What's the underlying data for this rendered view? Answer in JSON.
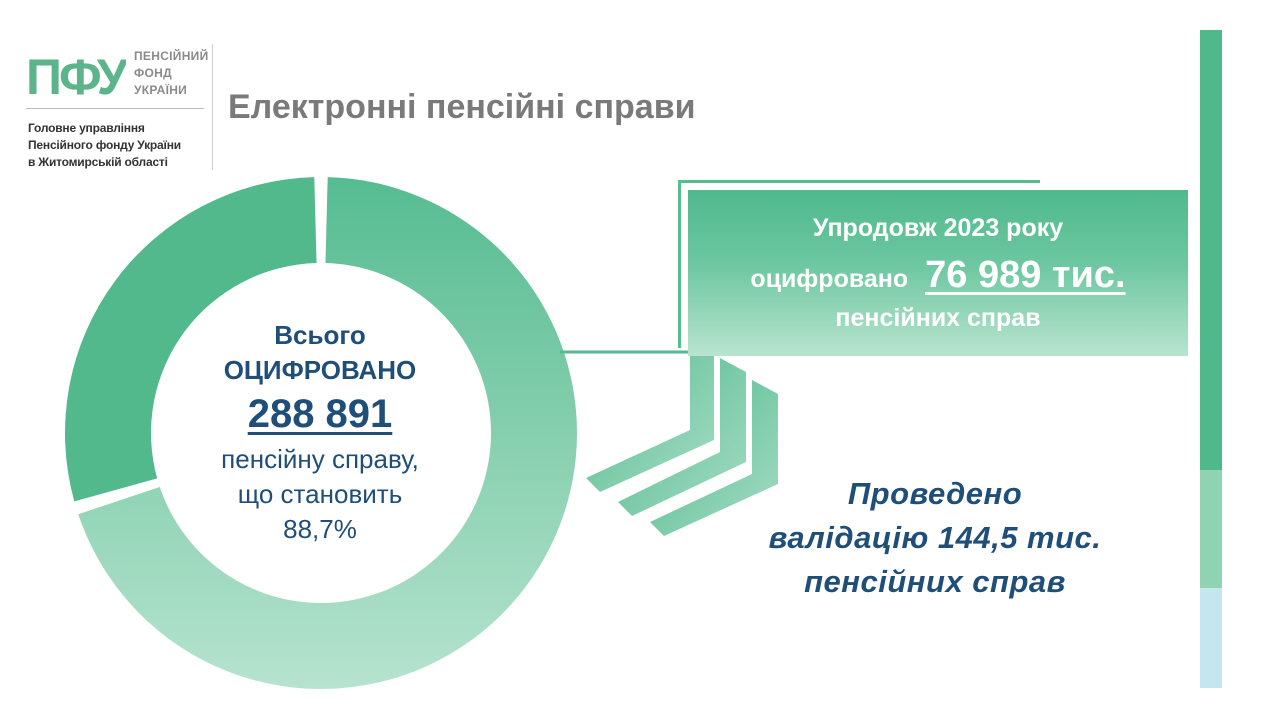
{
  "logo": {
    "abbr": "ПФУ",
    "words": [
      "ПЕНСІЙНИЙ",
      "ФОНД",
      "УКРАЇНИ"
    ],
    "department": [
      "Головне управління",
      "Пенсійного фонду України",
      "в Житомирській області"
    ]
  },
  "title": "Електронні пенсійні справи",
  "donut": {
    "line1": "Всього",
    "line2": "ОЦИФРОВАНО",
    "number": "288 891",
    "line3": "пенсійну справу,",
    "line4": "що становить",
    "line5": "88,7%",
    "percent": 88.7
  },
  "callout": {
    "line1": "Упродовж 2023 року",
    "line2_prefix": "оцифровано",
    "number": "76 989 тис.",
    "line3": "пенсійних справ"
  },
  "validation": {
    "line1": "Проведено",
    "line2": "валідацію 144,5 тис.",
    "line3": "пенсійних справ"
  },
  "colors": {
    "green": "#4fb98c",
    "light_green": "#a6dcc6",
    "navy": "#1f4e79",
    "grey": "#7a7a7a"
  }
}
